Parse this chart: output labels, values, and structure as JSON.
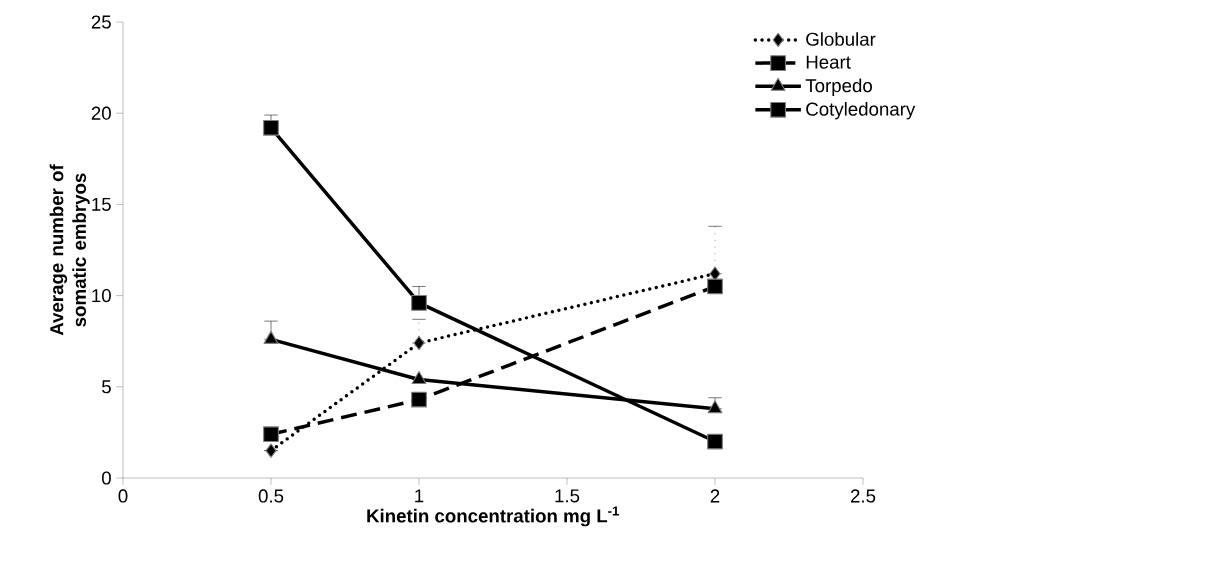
{
  "chart_data": {
    "type": "line",
    "xlabel": "Kinetin concentration mg L$^{-1}$",
    "ylabel": "Average number of somatic embryos",
    "x": [
      0.5,
      1,
      2
    ],
    "series": [
      {
        "name": "Globular",
        "color": "#000000",
        "marker": "diamond",
        "line_style": "dotted",
        "values": [
          1.5,
          7.4,
          11.2
        ],
        "errors": [
          null,
          [
            7.4,
            8.7
          ],
          [
            11.2,
            13.8
          ]
        ]
      },
      {
        "name": "Heart",
        "color": "#000000",
        "marker": "square",
        "line_style": "dashed",
        "values": [
          2.4,
          4.3,
          10.5
        ]
      },
      {
        "name": "Torpedo",
        "color": "#000000",
        "marker": "triangle",
        "line_style": "solid",
        "values": [
          7.6,
          5.4,
          3.8
        ],
        "errors": [
          [
            7.6,
            8.6
          ],
          null,
          [
            3.8,
            4.4
          ]
        ]
      },
      {
        "name": "Cotyledonary",
        "color": "#000000",
        "marker": "square",
        "line_style": "solid",
        "values": [
          19.2,
          9.6,
          2.0
        ],
        "errors": [
          [
            19.2,
            19.9
          ],
          [
            9.6,
            10.5
          ],
          null
        ]
      }
    ],
    "xlim": [
      0,
      2.5
    ],
    "xticks": [
      0,
      0.5,
      1,
      1.5,
      2,
      2.5
    ],
    "ylim": [
      0,
      25
    ],
    "yticks": [
      0,
      5,
      10,
      15,
      20,
      25
    ],
    "grid": false,
    "legend": "top right"
  }
}
